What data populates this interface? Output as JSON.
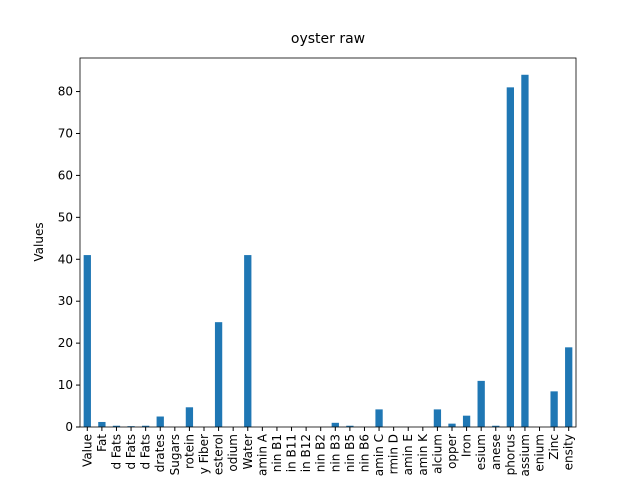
{
  "chart_data": {
    "type": "bar",
    "title": "oyster raw",
    "ylabel": "Values",
    "categories": [
      "Value",
      "Fat",
      "d Fats",
      "d Fats",
      "d Fats",
      "drates",
      "Sugars",
      "rotein",
      "y Fiber",
      "esterol",
      "odium",
      "Water",
      "amin A",
      "nin B1",
      "in B11",
      "in B12",
      "nin B2",
      "nin B3",
      "nin B5",
      "nin B6",
      "amin C",
      "rmin D",
      "amin E",
      "amin K",
      "alcium",
      "opper",
      "Iron",
      "esium",
      "anese",
      "phorus",
      "assium",
      "enium",
      "Zinc",
      "ensity"
    ],
    "values": [
      41,
      1.2,
      0.3,
      0.2,
      0.3,
      2.5,
      0,
      4.7,
      0,
      25,
      0,
      41,
      0,
      0,
      0,
      0,
      0,
      1,
      0.3,
      0,
      4.2,
      0,
      0,
      0,
      4.2,
      0.8,
      2.7,
      11,
      0.3,
      81,
      84,
      0,
      8.5,
      19
    ],
    "color": "#1f77b4",
    "ylim": [
      0,
      88
    ],
    "yticks": [
      0,
      10,
      20,
      30,
      40,
      50,
      60,
      70,
      80
    ]
  }
}
